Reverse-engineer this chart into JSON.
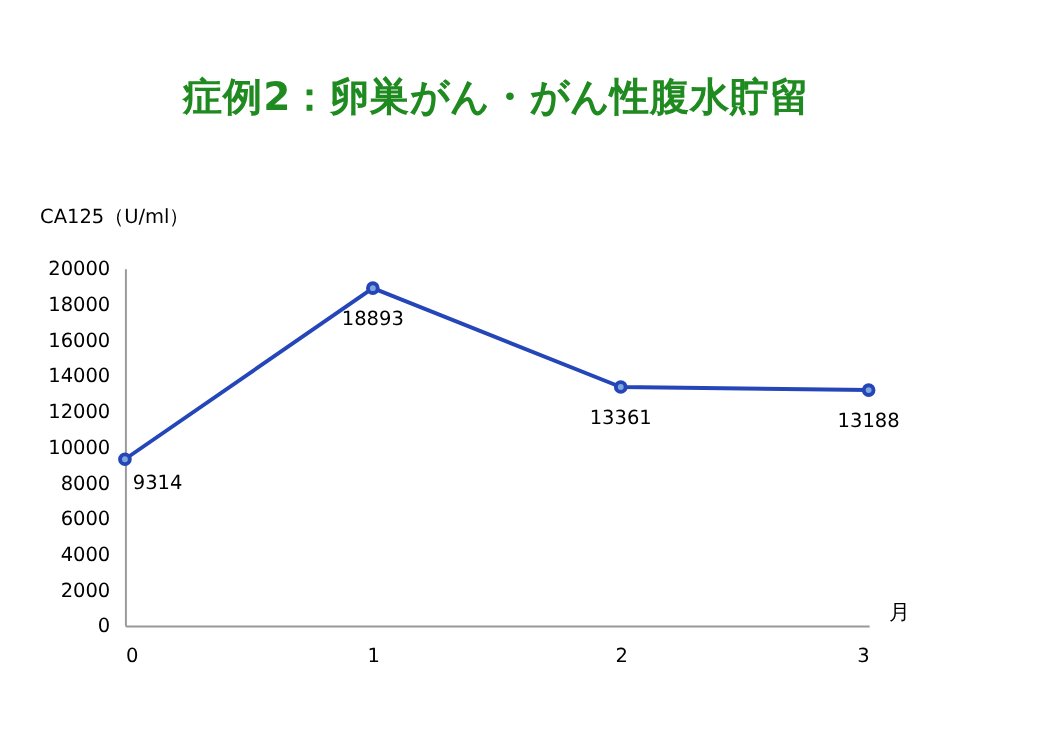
{
  "chart_data": {
    "type": "line",
    "title": "症例2：卵巣がん・がん性腹水貯留",
    "ylabel": "CA125（U/ml）",
    "xlabel": "月",
    "x": [
      0,
      1,
      2,
      3
    ],
    "series": [
      {
        "color": "#2446b8",
        "values": [
          9314,
          18893,
          13361,
          13188
        ]
      }
    ],
    "xlim": [
      0,
      3
    ],
    "xticks": [
      0,
      1,
      2,
      3
    ],
    "ylim": [
      0,
      20000
    ],
    "yticks": [
      0,
      2000,
      4000,
      6000,
      8000,
      10000,
      12000,
      14000,
      16000,
      18000,
      20000
    ],
    "data_labels": true,
    "marker": "circle",
    "line_style": "solid",
    "grid": false,
    "legend": false
  }
}
